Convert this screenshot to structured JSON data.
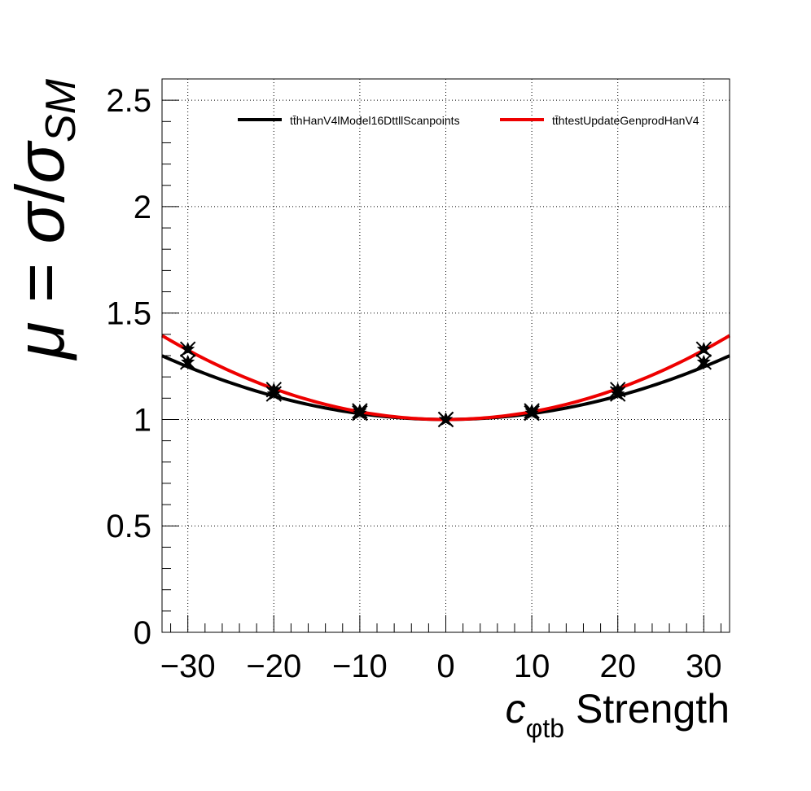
{
  "chart_data": {
    "type": "line",
    "xlabel": {
      "symbol": "c",
      "subscript": "φtb",
      "rest": " Strength"
    },
    "ylabel": {
      "mu": "μ",
      "eq": " = ",
      "sigma1": "σ",
      "slash": "/",
      "sigma2": "σ",
      "subscript": "SM"
    },
    "xlim": [
      -33,
      33
    ],
    "ylim": [
      0,
      2.6
    ],
    "xticks": [
      -30,
      -20,
      -10,
      0,
      10,
      20,
      30
    ],
    "xtick_labels": [
      "−30",
      "−20",
      "−10",
      "0",
      "10",
      "20",
      "30"
    ],
    "yticks": [
      0,
      0.5,
      1,
      1.5,
      2,
      2.5
    ],
    "ytick_labels": [
      "0",
      "0.5",
      "1",
      "1.5",
      "2",
      "2.5"
    ],
    "grid": true,
    "legend_position": "top-right",
    "series": [
      {
        "name": "tt̄hHanV4lModel16DttllScanpoints",
        "color": "#000000",
        "fit_coeffs": [
          1.0,
          0.0,
          0.000275
        ],
        "points": [
          {
            "x": -30,
            "y": 1.27
          },
          {
            "x": -20,
            "y": 1.12
          },
          {
            "x": -10,
            "y": 1.03
          },
          {
            "x": 0,
            "y": 1.0
          },
          {
            "x": 10,
            "y": 1.03
          },
          {
            "x": 20,
            "y": 1.12
          },
          {
            "x": 30,
            "y": 1.27
          }
        ]
      },
      {
        "name": "tt̄htestUpdateGenprodHanV4",
        "color": "#ee0000",
        "fit_coeffs": [
          1.0,
          0.0,
          0.000362
        ],
        "points": [
          {
            "x": -30,
            "y": 1.33
          },
          {
            "x": -20,
            "y": 1.14
          },
          {
            "x": -10,
            "y": 1.04
          },
          {
            "x": 0,
            "y": 1.0
          },
          {
            "x": 10,
            "y": 1.04
          },
          {
            "x": 20,
            "y": 1.14
          },
          {
            "x": 30,
            "y": 1.33
          }
        ]
      }
    ]
  }
}
